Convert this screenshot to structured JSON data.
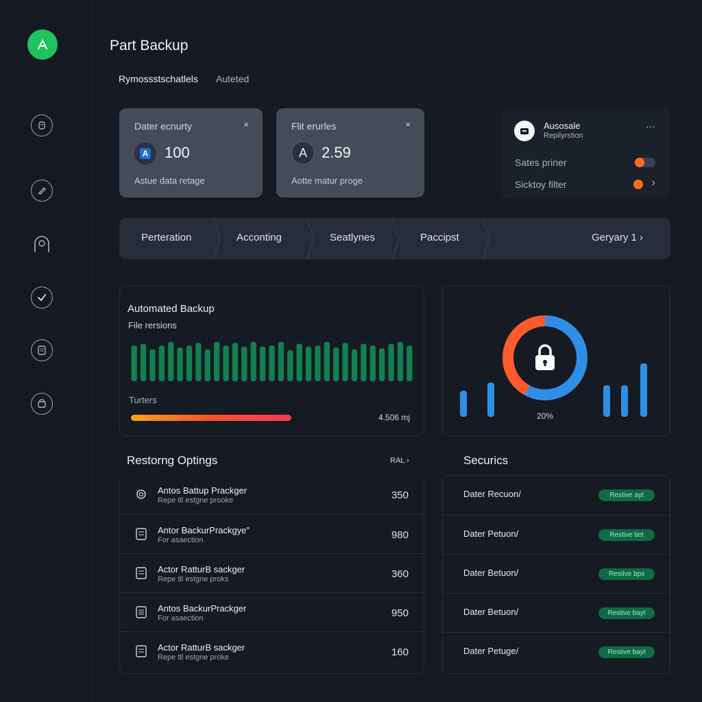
{
  "app": {
    "title": "Part Backup"
  },
  "tabs": [
    {
      "label": "Rymossstschatlels"
    },
    {
      "label": "Auteted"
    }
  ],
  "stats": [
    {
      "label": "Dater ecnurty",
      "value": "100",
      "sub": "Astue data retage",
      "icon_letter": "A",
      "close": "×"
    },
    {
      "label": "Flit erurles",
      "value": "2.59",
      "sub": "Aotte matur proge",
      "icon_letter": "A",
      "close": "×"
    }
  ],
  "autosale": {
    "title": "Ausosale",
    "subtitle": "Repilyrstion",
    "more": "···",
    "items": [
      {
        "label": "Sates priner"
      },
      {
        "label": "Sicktoy filter",
        "chevron": "›"
      }
    ]
  },
  "steps": {
    "items": [
      {
        "label": "Perteration"
      },
      {
        "label": "Acconting"
      },
      {
        "label": "Seatlynes"
      },
      {
        "label": "Paccipst"
      }
    ],
    "pager": "Geryary 1 ›"
  },
  "backup_panel": {
    "title": "Automated Backup",
    "subtitle": "File rersions",
    "bar_values": [
      38,
      40,
      34,
      38,
      42,
      36,
      38,
      41,
      34,
      42,
      38,
      41,
      37,
      42,
      37,
      38,
      42,
      33,
      40,
      37,
      38,
      42,
      36,
      41,
      34,
      40,
      38,
      35,
      40,
      42,
      38
    ],
    "progress_label": "Turters",
    "progress_value": 0.57,
    "progress_text": "4.506 mj"
  },
  "security_chart": {
    "donut_orange_fraction": 0.42,
    "donut_blue_fraction": 0.58,
    "left_bars": [
      38,
      50
    ],
    "right_bars": [
      46,
      46,
      78
    ],
    "percent_label": "20%",
    "colors": {
      "orange": "#ff5a2d",
      "blue": "#2f8fe6"
    }
  },
  "restoring": {
    "title": "Restorng Optings",
    "action": "RAL ›",
    "rows": [
      {
        "icon": "gear-icon",
        "title": "Antos Battup Prackger",
        "sub": "Repe tll estgne prooke",
        "value": "350"
      },
      {
        "icon": "document-icon",
        "title": "Antor BackurPrackgye\"",
        "sub": "For asaection",
        "value": "980"
      },
      {
        "icon": "document-icon",
        "title": "Actor RatturB sackger",
        "sub": "Repe tll estgne proks",
        "value": "360"
      },
      {
        "icon": "list-icon",
        "title": "Antos BackurPrackger",
        "sub": "For asaection",
        "value": "950"
      },
      {
        "icon": "document-icon",
        "title": "Actor RatturB sackger",
        "sub": "Repe tll estgne proke",
        "value": "160"
      }
    ]
  },
  "securics": {
    "title": "Securics",
    "rows": [
      {
        "label": "Dater Recuon/",
        "badge": "Restive ayt"
      },
      {
        "label": "Dater Petuon/",
        "badge": "Restive tiet"
      },
      {
        "label": "Dater Betuon/",
        "badge": "Restive bps"
      },
      {
        "label": "Dater Betuon/",
        "badge": "Restive bayt"
      },
      {
        "label": "Dater Petuge/",
        "badge": "Restive bayt"
      }
    ]
  },
  "colors": {
    "accent_green": "#1fc35d",
    "bar_green": "#12804f",
    "badge_green": "#0e6b45"
  }
}
